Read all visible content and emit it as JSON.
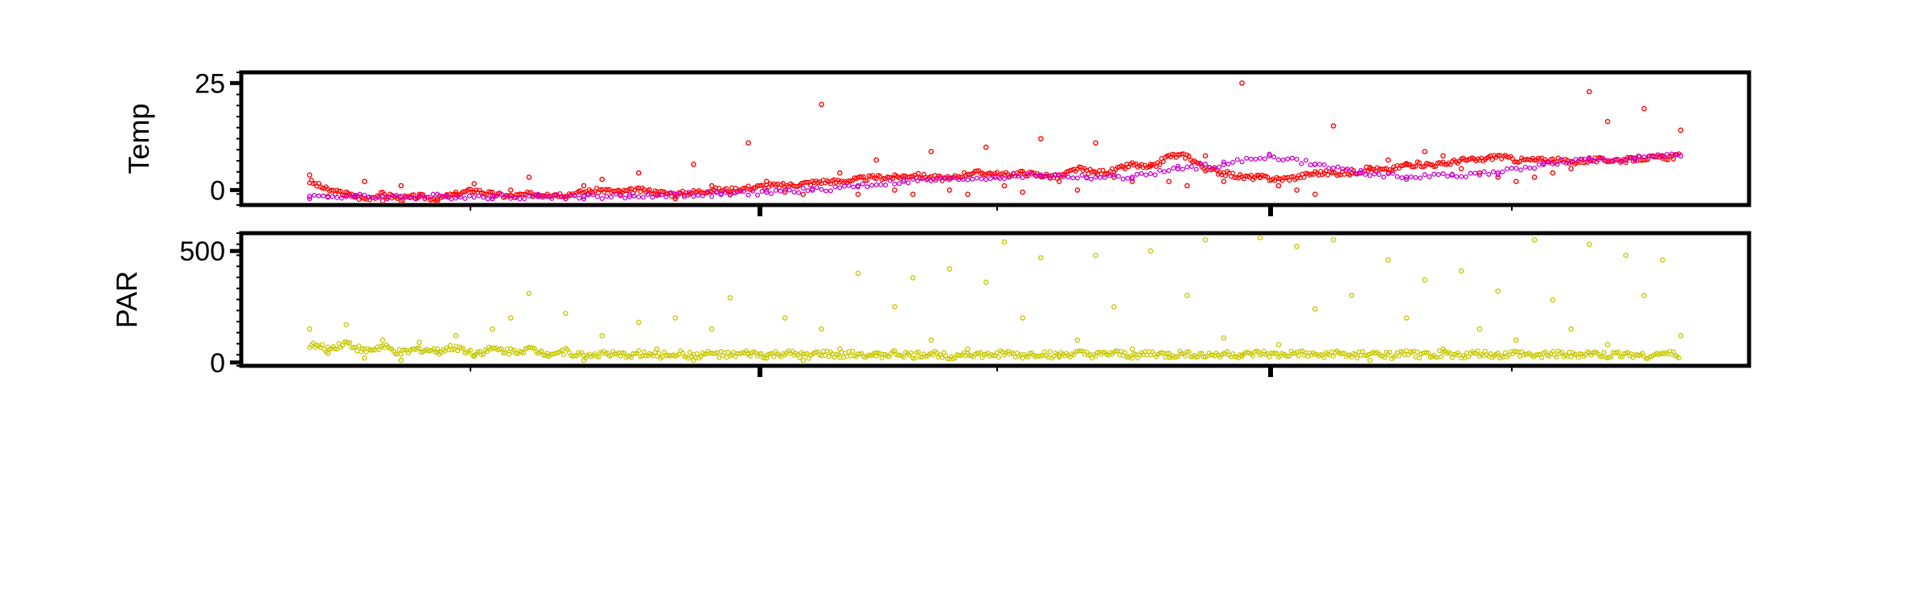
{
  "chart_data": [
    {
      "type": "scatter",
      "ylabel": "Temp",
      "ylim": [
        -3.5,
        27.5
      ],
      "yticks": [
        0,
        25
      ],
      "ytick_labels": [
        "0",
        "25"
      ],
      "grid": false,
      "colors": {
        "temp_air": "#ff0000",
        "temp_water": "#cc00cc"
      },
      "series": [
        {
          "x": [
            0,
            4,
            8,
            12,
            16,
            20,
            24,
            28,
            32,
            36,
            40,
            44,
            48,
            52,
            56,
            60,
            64,
            68,
            72,
            76,
            80,
            84,
            88,
            92,
            96,
            100,
            104,
            108,
            112,
            116,
            120,
            124,
            128,
            132,
            136,
            140,
            144,
            148,
            152,
            156,
            160,
            164,
            168,
            172,
            176,
            180,
            184,
            188,
            192,
            196,
            200,
            204,
            208,
            212,
            216,
            220,
            224,
            228,
            232,
            236,
            240,
            244,
            248,
            252,
            256,
            260,
            264,
            268,
            272,
            276,
            280,
            284,
            288,
            292,
            296,
            300
          ],
          "y": [
            3.5,
            -1.5,
            -0.5,
            2,
            -2.5,
            1,
            -1.5,
            -2.5,
            -1,
            1.5,
            -2,
            0,
            3,
            -1,
            -2,
            1,
            2.5,
            -1,
            4,
            -0.5,
            -2,
            6,
            1,
            -1,
            11,
            2,
            -0.5,
            -1,
            20,
            4,
            -1,
            7,
            0,
            -1,
            9,
            0,
            -1,
            10,
            1,
            -0.5,
            12,
            2,
            0,
            11,
            3,
            2,
            6,
            2,
            1,
            8,
            2,
            25,
            3,
            1,
            0,
            -1,
            15,
            4,
            5,
            7,
            6,
            9,
            8,
            5,
            4,
            3,
            2,
            3,
            4,
            5,
            23,
            16,
            7,
            19,
            8,
            14
          ],
          "y_trend": [
            2,
            0,
            -1,
            -2,
            -1,
            -2,
            -1.5,
            -2,
            -1,
            0,
            -1,
            -1.5,
            -1,
            -1,
            -1,
            -0.5,
            0,
            -0.5,
            0,
            -0.5,
            -1,
            -0.5,
            0,
            0,
            0.5,
            1,
            1,
            1.5,
            2,
            2,
            2.5,
            3,
            3,
            3.5,
            3,
            2.5,
            4,
            4,
            3.5,
            4,
            3.5,
            3,
            5,
            4,
            4.5,
            6,
            5,
            8,
            8,
            5,
            4,
            3,
            3,
            2.5,
            3,
            4,
            4,
            4,
            5,
            4.5,
            6,
            6,
            6,
            7,
            7,
            8,
            7,
            7,
            7,
            6.5,
            7,
            7,
            7,
            7.5,
            7.5,
            8
          ]
        },
        {
          "x": [
            0,
            10,
            20,
            30,
            40,
            50,
            60,
            70,
            80,
            90,
            100,
            110,
            120,
            130,
            140,
            150,
            160,
            170,
            180,
            190,
            200,
            210,
            220,
            230,
            240,
            250,
            260,
            270,
            280,
            290,
            300
          ],
          "y": [
            -1.5,
            -1.5,
            -1.5,
            -1.5,
            -1.5,
            -1.5,
            -1.5,
            -1.5,
            -1,
            -1,
            -0.5,
            0,
            1,
            2,
            2.5,
            3,
            3.5,
            3,
            3,
            5,
            6,
            8,
            6,
            4,
            3,
            3.5,
            4,
            6,
            7,
            7.5,
            8
          ],
          "y_trend": [
            -1.5,
            -1.5,
            -1.5,
            -1.5,
            -1.5,
            -1.5,
            -1.5,
            -1.5,
            -1,
            -1,
            -0.5,
            0,
            1,
            2,
            2.5,
            3,
            3.5,
            3,
            3,
            5,
            6,
            8,
            6,
            4,
            3,
            3.5,
            4,
            6,
            7,
            7.5,
            8
          ]
        }
      ]
    },
    {
      "type": "scatter",
      "ylabel": "PAR",
      "ylim": [
        -15,
        580
      ],
      "yticks": [
        0,
        500
      ],
      "ytick_labels": [
        "0",
        "500"
      ],
      "grid": false,
      "colors": {
        "par": "#c8c800"
      },
      "series": [
        {
          "x": [
            0,
            4,
            8,
            12,
            16,
            20,
            24,
            28,
            32,
            36,
            40,
            44,
            48,
            52,
            56,
            60,
            64,
            68,
            72,
            76,
            80,
            84,
            88,
            92,
            96,
            100,
            104,
            108,
            112,
            116,
            120,
            124,
            128,
            132,
            136,
            140,
            144,
            148,
            152,
            156,
            160,
            164,
            168,
            172,
            176,
            180,
            184,
            188,
            192,
            196,
            200,
            204,
            208,
            212,
            216,
            220,
            224,
            228,
            232,
            236,
            240,
            244,
            248,
            252,
            256,
            260,
            264,
            268,
            272,
            276,
            280,
            284,
            288,
            292,
            296,
            300
          ],
          "y": [
            150,
            40,
            170,
            20,
            100,
            10,
            90,
            60,
            120,
            30,
            150,
            200,
            310,
            40,
            220,
            10,
            120,
            30,
            180,
            60,
            200,
            10,
            150,
            290,
            40,
            20,
            200,
            10,
            150,
            60,
            400,
            30,
            250,
            380,
            100,
            420,
            60,
            360,
            540,
            200,
            470,
            30,
            100,
            480,
            250,
            60,
            500,
            40,
            300,
            550,
            110,
            30,
            560,
            80,
            520,
            240,
            550,
            300,
            10,
            460,
            200,
            370,
            60,
            410,
            150,
            320,
            100,
            550,
            280,
            150,
            530,
            80,
            480,
            300,
            460,
            120
          ],
          "y_trend": [
            80,
            60,
            90,
            50,
            70,
            40,
            60,
            50,
            70,
            40,
            60,
            50,
            60,
            40,
            50,
            30,
            40,
            30,
            40,
            30,
            40,
            30,
            40,
            30,
            40,
            30,
            40,
            30,
            40,
            30,
            40,
            30,
            40,
            30,
            40,
            30,
            40,
            30,
            40,
            30,
            40,
            30,
            40,
            30,
            40,
            30,
            40,
            30,
            40,
            30,
            40,
            30,
            40,
            30,
            40,
            30,
            40,
            30,
            40,
            30,
            40,
            30,
            40,
            30,
            40,
            30,
            40,
            30,
            40,
            30,
            40,
            30,
            40,
            30,
            40,
            30
          ]
        }
      ]
    }
  ]
}
